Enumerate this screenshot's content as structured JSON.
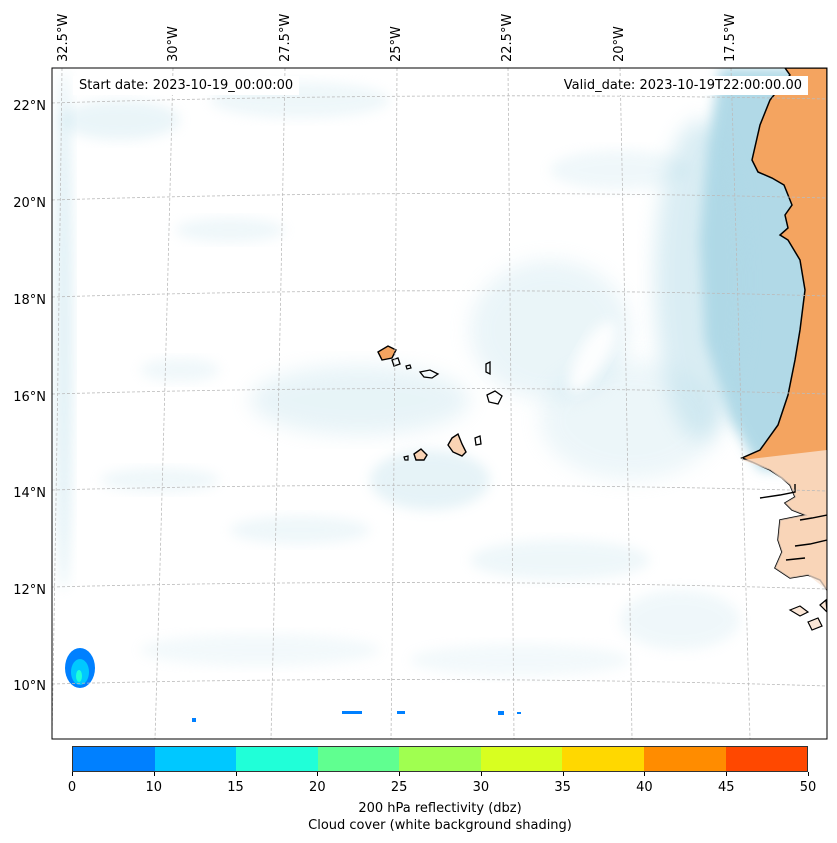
{
  "map": {
    "start_date": "Start date: 2023-10-19_00:00:00",
    "valid_date": "Valid_date: 2023-10-19T22:00:00.00",
    "longitude_labels": [
      "32.5°W",
      "30°W",
      "27.5°W",
      "25°W",
      "22.5°W",
      "20°W",
      "17.5°W"
    ],
    "latitude_labels": [
      "22°N",
      "20°N",
      "18°N",
      "16°N",
      "14°N",
      "12°N",
      "10°N"
    ],
    "colors": {
      "land": "#f4a460",
      "cloud": "#add8e6",
      "coastline": "#000000",
      "gridline": "#bbbbbb"
    },
    "grid": "on"
  },
  "colorbar": {
    "ticks": [
      "0",
      "10",
      "15",
      "20",
      "25",
      "30",
      "35",
      "40",
      "45",
      "50"
    ],
    "colors": [
      "#0080ff",
      "#00c8ff",
      "#20ffd8",
      "#60ff90",
      "#a0ff50",
      "#d8ff20",
      "#ffd800",
      "#ff8c00",
      "#ff4800"
    ],
    "label": "200 hPa reflectivity (dbz)",
    "caption": "Cloud cover (white background shading)"
  }
}
